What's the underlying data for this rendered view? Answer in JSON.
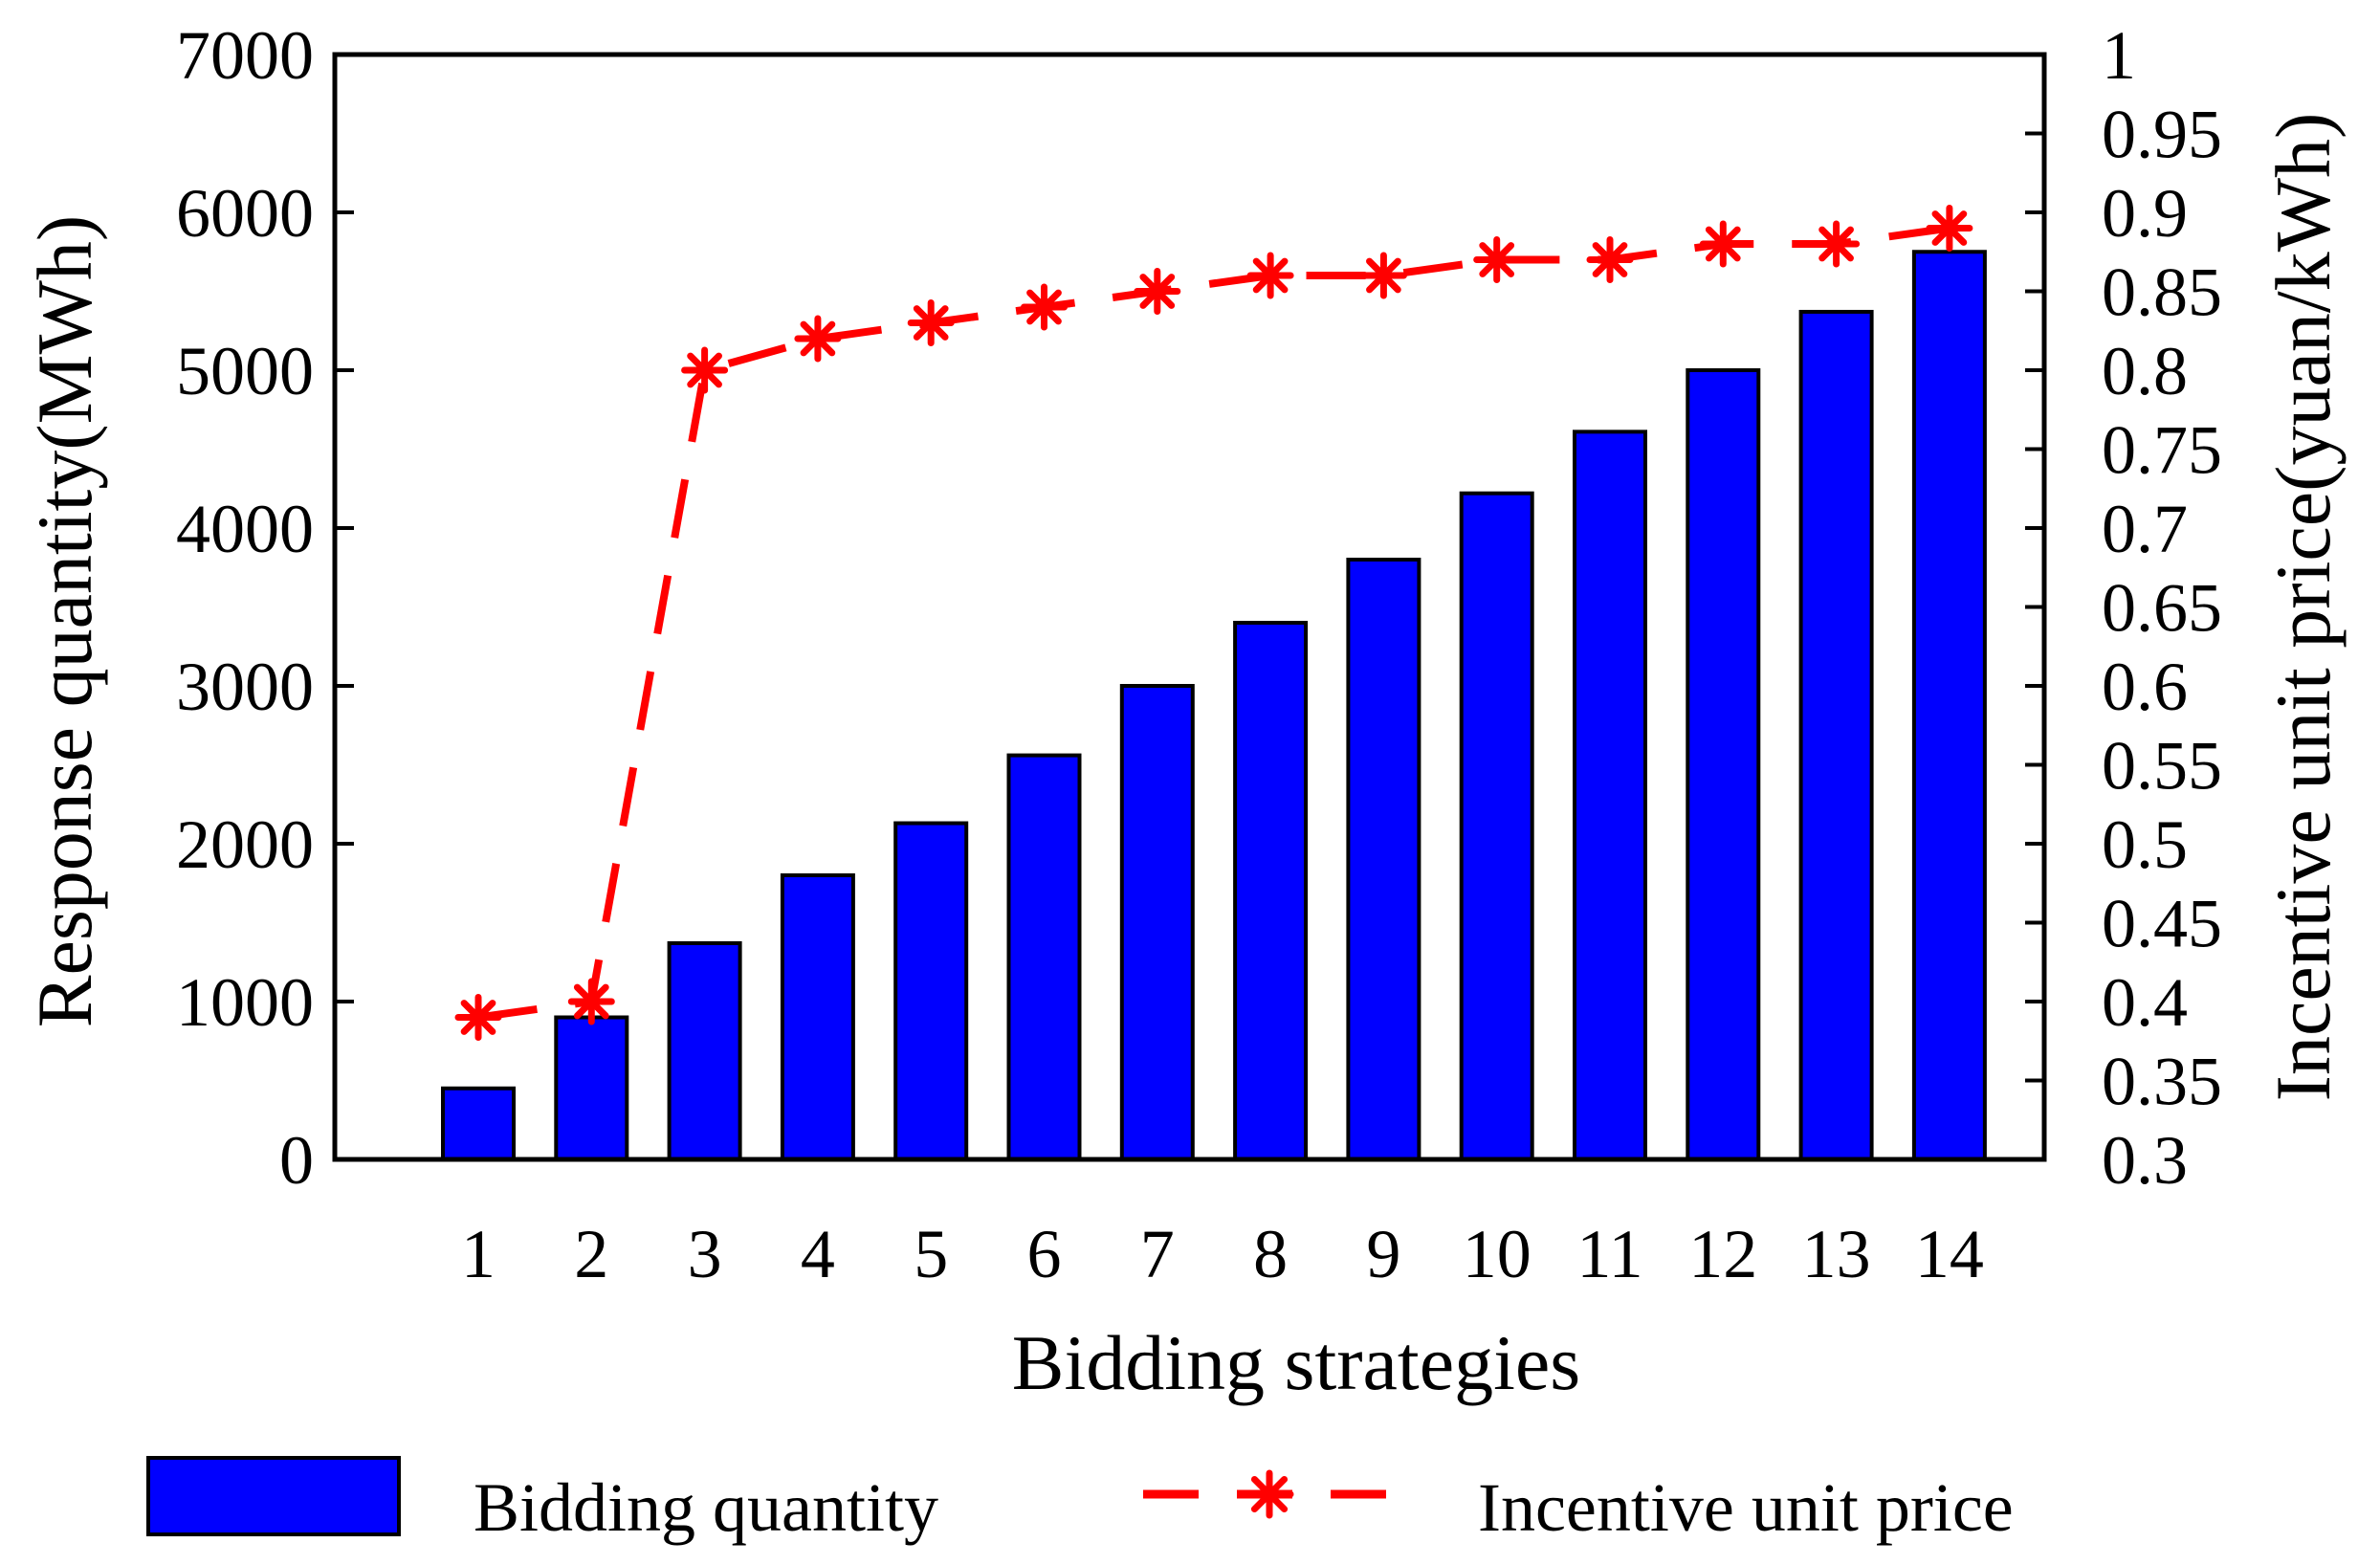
{
  "chart_data": {
    "type": "bar",
    "title": "",
    "xlabel": "Bidding strategies",
    "ylabel_left": "Response quantity(MWh)",
    "ylabel_right": "Incentive unit price(yuan/kWh)",
    "categories": [
      "1",
      "2",
      "3",
      "4",
      "5",
      "6",
      "7",
      "8",
      "9",
      "10",
      "11",
      "12",
      "13",
      "14"
    ],
    "ylim_left": [
      0,
      7000
    ],
    "yticks_left": [
      "0",
      "1000",
      "2000",
      "3000",
      "4000",
      "5000",
      "6000",
      "7000"
    ],
    "ylim_right": [
      0.3,
      1
    ],
    "yticks_right": [
      "0.3",
      "0.35",
      "0.4",
      "0.45",
      "0.5",
      "0.55",
      "0.6",
      "0.65",
      "0.7",
      "0.75",
      "0.8",
      "0.85",
      "0.9",
      "0.95",
      "1"
    ],
    "grid": false,
    "legend_position": "bottom",
    "series": [
      {
        "name": "Bidding quantity",
        "type": "bar",
        "axis": "left",
        "color": "#0000ff",
        "values": [
          450,
          900,
          1370,
          1800,
          2130,
          2560,
          3000,
          3400,
          3800,
          4220,
          4610,
          5000,
          5370,
          5750
        ]
      },
      {
        "name": "Incentive unit price",
        "type": "line",
        "axis": "right",
        "color": "#ff0000",
        "line_style": "dashed",
        "marker": "asterisk",
        "values": [
          0.39,
          0.4,
          0.8,
          0.82,
          0.83,
          0.84,
          0.85,
          0.86,
          0.86,
          0.87,
          0.87,
          0.88,
          0.88,
          0.89
        ]
      }
    ]
  }
}
